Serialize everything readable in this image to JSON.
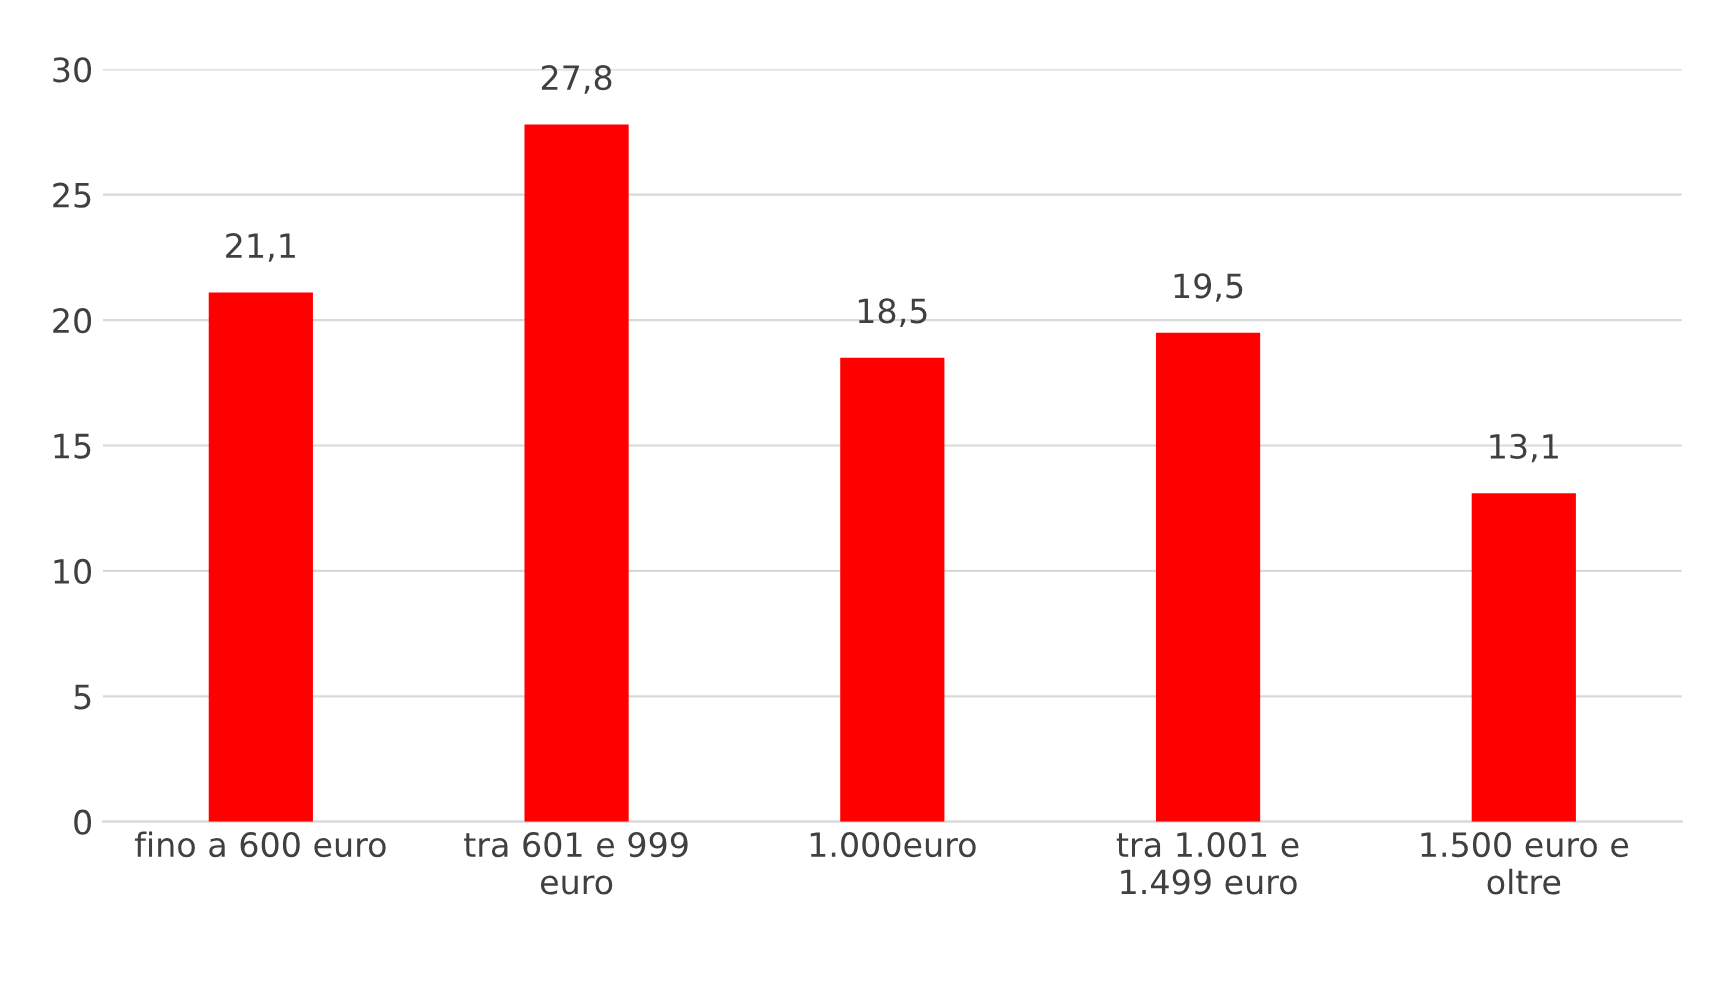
{
  "chart_data": {
    "type": "bar",
    "categories": [
      "fino a 600 euro",
      "tra 601 e 999 euro",
      "1.000euro",
      "tra 1.001 e 1.499 euro",
      "1.500 euro e oltre"
    ],
    "values": [
      21.1,
      27.8,
      18.5,
      19.5,
      13.1
    ],
    "value_labels": [
      "21,1",
      "27,8",
      "18,5",
      "19,5",
      "13,1"
    ],
    "color": "#ff0000",
    "ylim": [
      0,
      30
    ],
    "yticks": [
      0,
      5,
      10,
      15,
      20,
      25,
      30
    ],
    "grid": "y"
  }
}
